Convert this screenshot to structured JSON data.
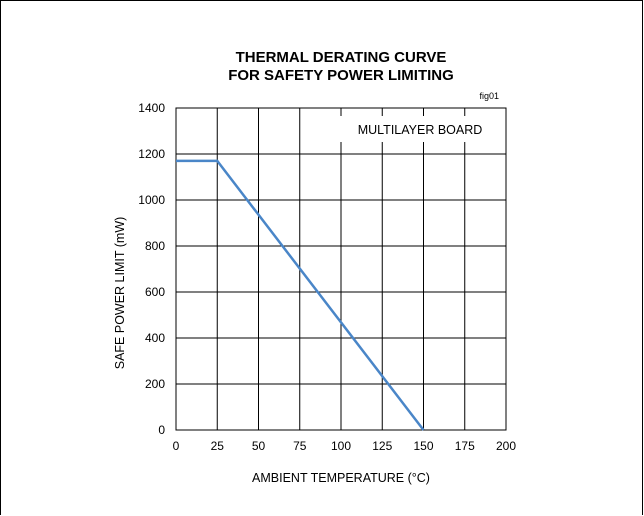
{
  "chart_data": {
    "type": "line",
    "title_lines": [
      "THERMAL DERATING CURVE",
      "FOR SAFETY POWER LIMITING"
    ],
    "figure_id": "fig01",
    "annotation": "MULTILAYER BOARD",
    "xlabel": "AMBIENT TEMPERATURE (°C)",
    "ylabel": "SAFE POWER LIMIT (mW)",
    "xlim": [
      0,
      200
    ],
    "ylim": [
      0,
      1400
    ],
    "xticks": [
      0,
      25,
      50,
      75,
      100,
      125,
      150,
      175,
      200
    ],
    "yticks": [
      0,
      200,
      400,
      600,
      800,
      1000,
      1200,
      1400
    ],
    "grid": true,
    "series": [
      {
        "color": "#4a86c8",
        "x": [
          0,
          25,
          150
        ],
        "y": [
          1170,
          1170,
          0
        ]
      }
    ]
  }
}
